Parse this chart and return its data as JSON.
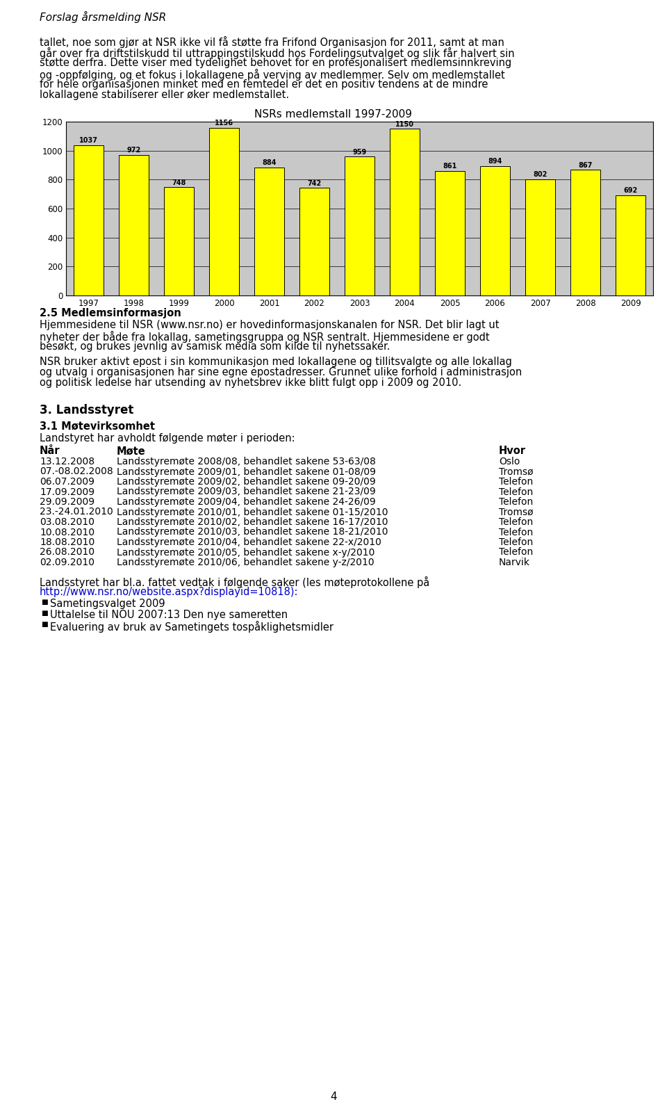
{
  "page_title": "Forslag årsmelding NSR",
  "chart_title": "NSRs medlemstall 1997-2009",
  "years": [
    1997,
    1998,
    1999,
    2000,
    2001,
    2002,
    2003,
    2004,
    2005,
    2006,
    2007,
    2008,
    2009
  ],
  "values": [
    1037,
    972,
    748,
    1156,
    884,
    742,
    959,
    1150,
    861,
    894,
    802,
    867,
    692
  ],
  "bar_color": "#FFFF00",
  "bar_edge_color": "#000000",
  "chart_bg_color": "#C8C8C8",
  "ylim": [
    0,
    1200
  ],
  "yticks": [
    0,
    200,
    400,
    600,
    800,
    1000,
    1200
  ],
  "section25_title": "2.5 Medlemsinformasjon",
  "section3_title": "3. Landsstyret",
  "section31_title": "3.1 Møtevirksomhet",
  "section31_intro": "Landstyret har avholdt følgende møter i perioden:",
  "table_headers": [
    "Når",
    "Møte",
    "Hvor"
  ],
  "table_rows": [
    [
      "13.12.2008",
      "Landsstyremøte 2008/08, behandlet sakene 53-63/08",
      "Oslo"
    ],
    [
      "07.-08.02.2008",
      "Landsstyremøte 2009/01, behandlet sakene 01-08/09",
      "Tromsø"
    ],
    [
      "06.07.2009",
      "Landsstyremøte 2009/02, behandlet sakene 09-20/09",
      "Telefon"
    ],
    [
      "17.09.2009",
      "Landsstyremøte 2009/03, behandlet sakene 21-23/09",
      "Telefon"
    ],
    [
      "29.09.2009",
      "Landsstyremøte 2009/04, behandlet sakene 24-26/09",
      "Telefon"
    ],
    [
      "23.-24.01.2010",
      "Landsstyremøte 2010/01, behandlet sakene 01-15/2010",
      "Tromsø"
    ],
    [
      "03.08.2010",
      "Landsstyremøte 2010/02, behandlet sakene 16-17/2010",
      "Telefon"
    ],
    [
      "10.08.2010",
      "Landsstyremøte 2010/03, behandlet sakene 18-21/2010",
      "Telefon"
    ],
    [
      "18.08.2010",
      "Landsstyremøte 2010/04, behandlet sakene 22-x/2010",
      "Telefon"
    ],
    [
      "26.08.2010",
      "Landsstyremøte 2010/05, behandlet sakene x-y/2010",
      "Telefon"
    ],
    [
      "02.09.2010",
      "Landsstyremøte 2010/06, behandlet sakene y-z/2010",
      "Narvik"
    ]
  ],
  "closing_line1": "Landsstyret har bl.a. fattet vedtak i følgende saker (les møteprotokollene på",
  "closing_link": "http://www.nsr.no/website.aspx?displayid=10818",
  "closing_link_suffix": "):",
  "bullets": [
    "Sametingsvalget 2009",
    "Uttalelse til NOU 2007:13 Den nye sameretten",
    "Evaluering av bruk av Sametingets tospåklighetsmidler"
  ],
  "page_number": "4",
  "link_color": "#0000CC",
  "para1_lines": [
    "tallet, noe som gjør at NSR ikke vil få støtte fra Frifond Organisasjon for 2011, samt at man",
    "går over fra driftstilskudd til uttrappingstilskudd hos Fordelingsutvalget og slik får halvert sin",
    "støtte derfra. Dette viser med tydelighet behovet for en profesjonalisert medlemsinnkreving",
    "og -oppfølging, og et fokus i lokallagene på verving av medlemmer. Selv om medlemstallet",
    "for hele organisasjonen minket med en femtedel er det en positiv tendens at de mindre",
    "lokallagene stabiliserer eller øker medlemstallet."
  ],
  "s25_lines": [
    "Hjemmesidene til NSR (www.nsr.no) er hovedinformasjonskanalen for NSR. Det blir lagt ut",
    "nyheter der både fra lokallag, sametingsgruppa og NSR sentralt. Hjemmesidene er godt",
    "besøkt, og brukes jevnlig av samisk media som kilde til nyhetssaker."
  ],
  "nsr_lines": [
    "NSR bruker aktivt epost i sin kommunikasjon med lokallagene og tillitsvalgte og alle lokallag",
    "og utvalg i organisasjonen har sine egne epostadresser. Grunnet ulike forhold i administrasjon",
    "og politisk ledelse har utsending av nyhetsbrev ikke blitt fulgt opp i 2009 og 2010."
  ]
}
